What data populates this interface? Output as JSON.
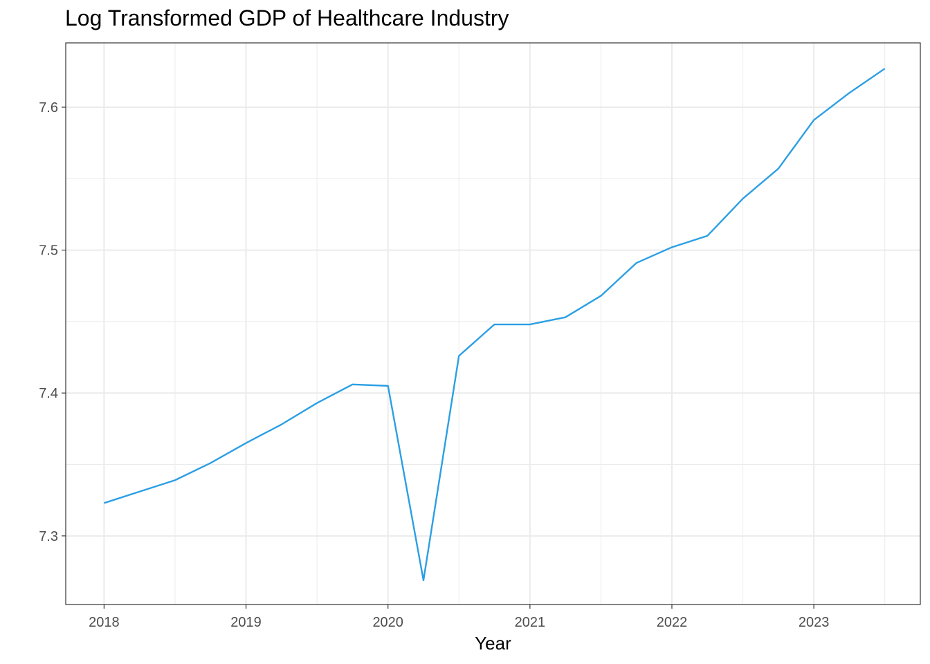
{
  "chart_data": {
    "type": "line",
    "title": "Log Transformed GDP of Healthcare Industry",
    "xlabel": "Year",
    "ylabel": "",
    "x_ticks": [
      2018,
      2019,
      2020,
      2021,
      2022,
      2023
    ],
    "y_ticks": [
      7.3,
      7.4,
      7.5,
      7.6
    ],
    "xlim": [
      2017.73,
      2023.75
    ],
    "ylim": [
      7.252,
      7.645
    ],
    "grid": true,
    "legend": "none",
    "line_color": "#2b9fe3",
    "series": [
      {
        "x": [
          2018.0,
          2018.25,
          2018.5,
          2018.75,
          2019.0,
          2019.25,
          2019.5,
          2019.75,
          2020.0,
          2020.25,
          2020.5,
          2020.75,
          2021.0,
          2021.25,
          2021.5,
          2021.75,
          2022.0,
          2022.25,
          2022.5,
          2022.75,
          2023.0,
          2023.25,
          2023.5
        ],
        "values": [
          7.323,
          7.331,
          7.339,
          7.351,
          7.365,
          7.378,
          7.393,
          7.406,
          7.405,
          7.269,
          7.426,
          7.448,
          7.448,
          7.453,
          7.468,
          7.491,
          7.502,
          7.51,
          7.536,
          7.557,
          7.591,
          7.61,
          7.627
        ]
      }
    ]
  }
}
